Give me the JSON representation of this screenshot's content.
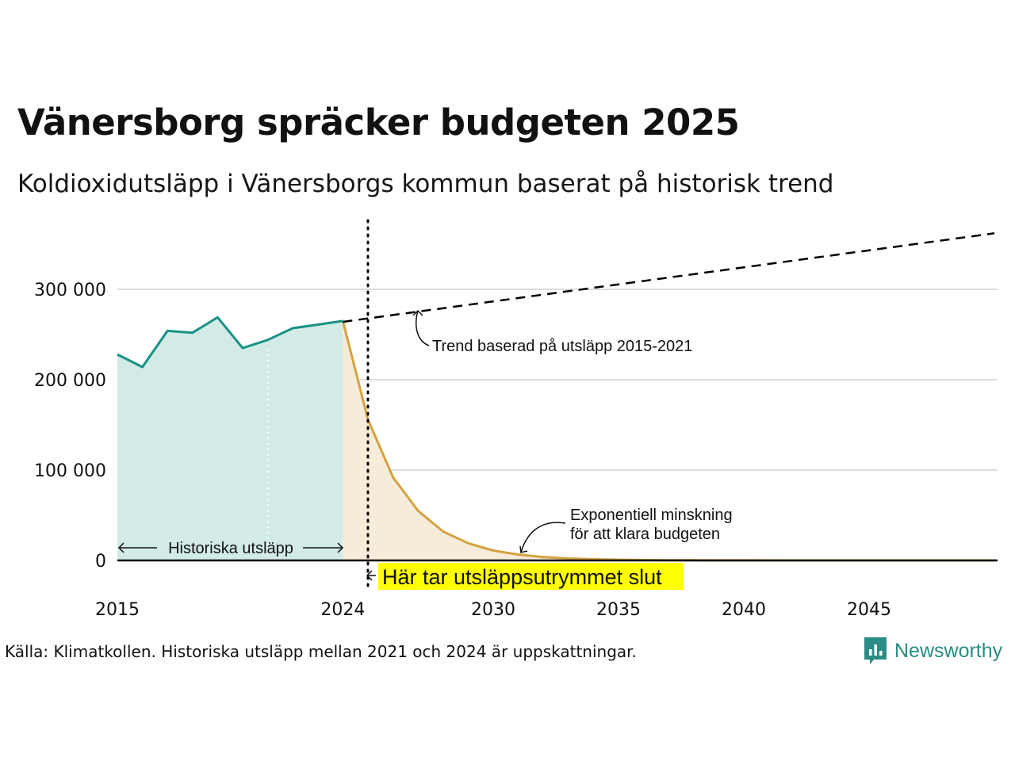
{
  "title": "Vänersborg spräcker budgeten 2025",
  "subtitle": "Koldioxidutsläpp i Vänersborgs kommun baserat på historisk trend",
  "source": "Källa: Klimatkollen. Historiska utsläpp mellan 2021 och 2024 är uppskattningar.",
  "brand": "Newsworthy",
  "colors": {
    "historic_line": "#1a9186",
    "historic_fill": "#d2ebe7",
    "budget_line": "#d4a240",
    "budget_fill": "#f6ecd9",
    "highlight": "#ffff00",
    "brand": "#2a8c84"
  },
  "chart_data": {
    "type": "area",
    "x_ticks": [
      2015,
      2024,
      2030,
      2035,
      2040,
      2045
    ],
    "y_ticks": [
      0,
      100000,
      200000,
      300000
    ],
    "y_tick_labels": [
      "0",
      "100 000",
      "200 000",
      "300 000"
    ],
    "xlim": [
      2015,
      2050
    ],
    "ylim": [
      0,
      370000
    ],
    "grid": true,
    "budget_end_year": 2025,
    "estimate_start_year": 2021,
    "series": [
      {
        "style": "area",
        "x": [
          2015,
          2016,
          2017,
          2018,
          2019,
          2020,
          2021,
          2022,
          2023,
          2024
        ],
        "y": [
          228000,
          214000,
          254000,
          252000,
          269000,
          235000,
          244000,
          257000,
          261000,
          265000
        ]
      },
      {
        "style": "area",
        "x": [
          2024,
          2025,
          2026,
          2027,
          2028,
          2029,
          2030,
          2031,
          2032,
          2033,
          2034,
          2035,
          2036,
          2037,
          2038,
          2039,
          2040,
          2042,
          2045,
          2050
        ],
        "y": [
          265000,
          156000,
          92000,
          55000,
          32000,
          19000,
          11000,
          6500,
          3800,
          2200,
          1300,
          800,
          470,
          280,
          160,
          100,
          60,
          20,
          5,
          0
        ]
      },
      {
        "style": "dashed",
        "x": [
          2024,
          2050
        ],
        "y": [
          264000,
          362000
        ]
      }
    ],
    "annotations": {
      "historic": "Historiska utsläpp",
      "trend": "Trend baserad på utsläpp 2015-2021",
      "decline_line1": "Exponentiell minskning",
      "decline_line2": "för att klara budgeten",
      "budget_end": "Här tar utsläppsutrymmet slut"
    }
  }
}
